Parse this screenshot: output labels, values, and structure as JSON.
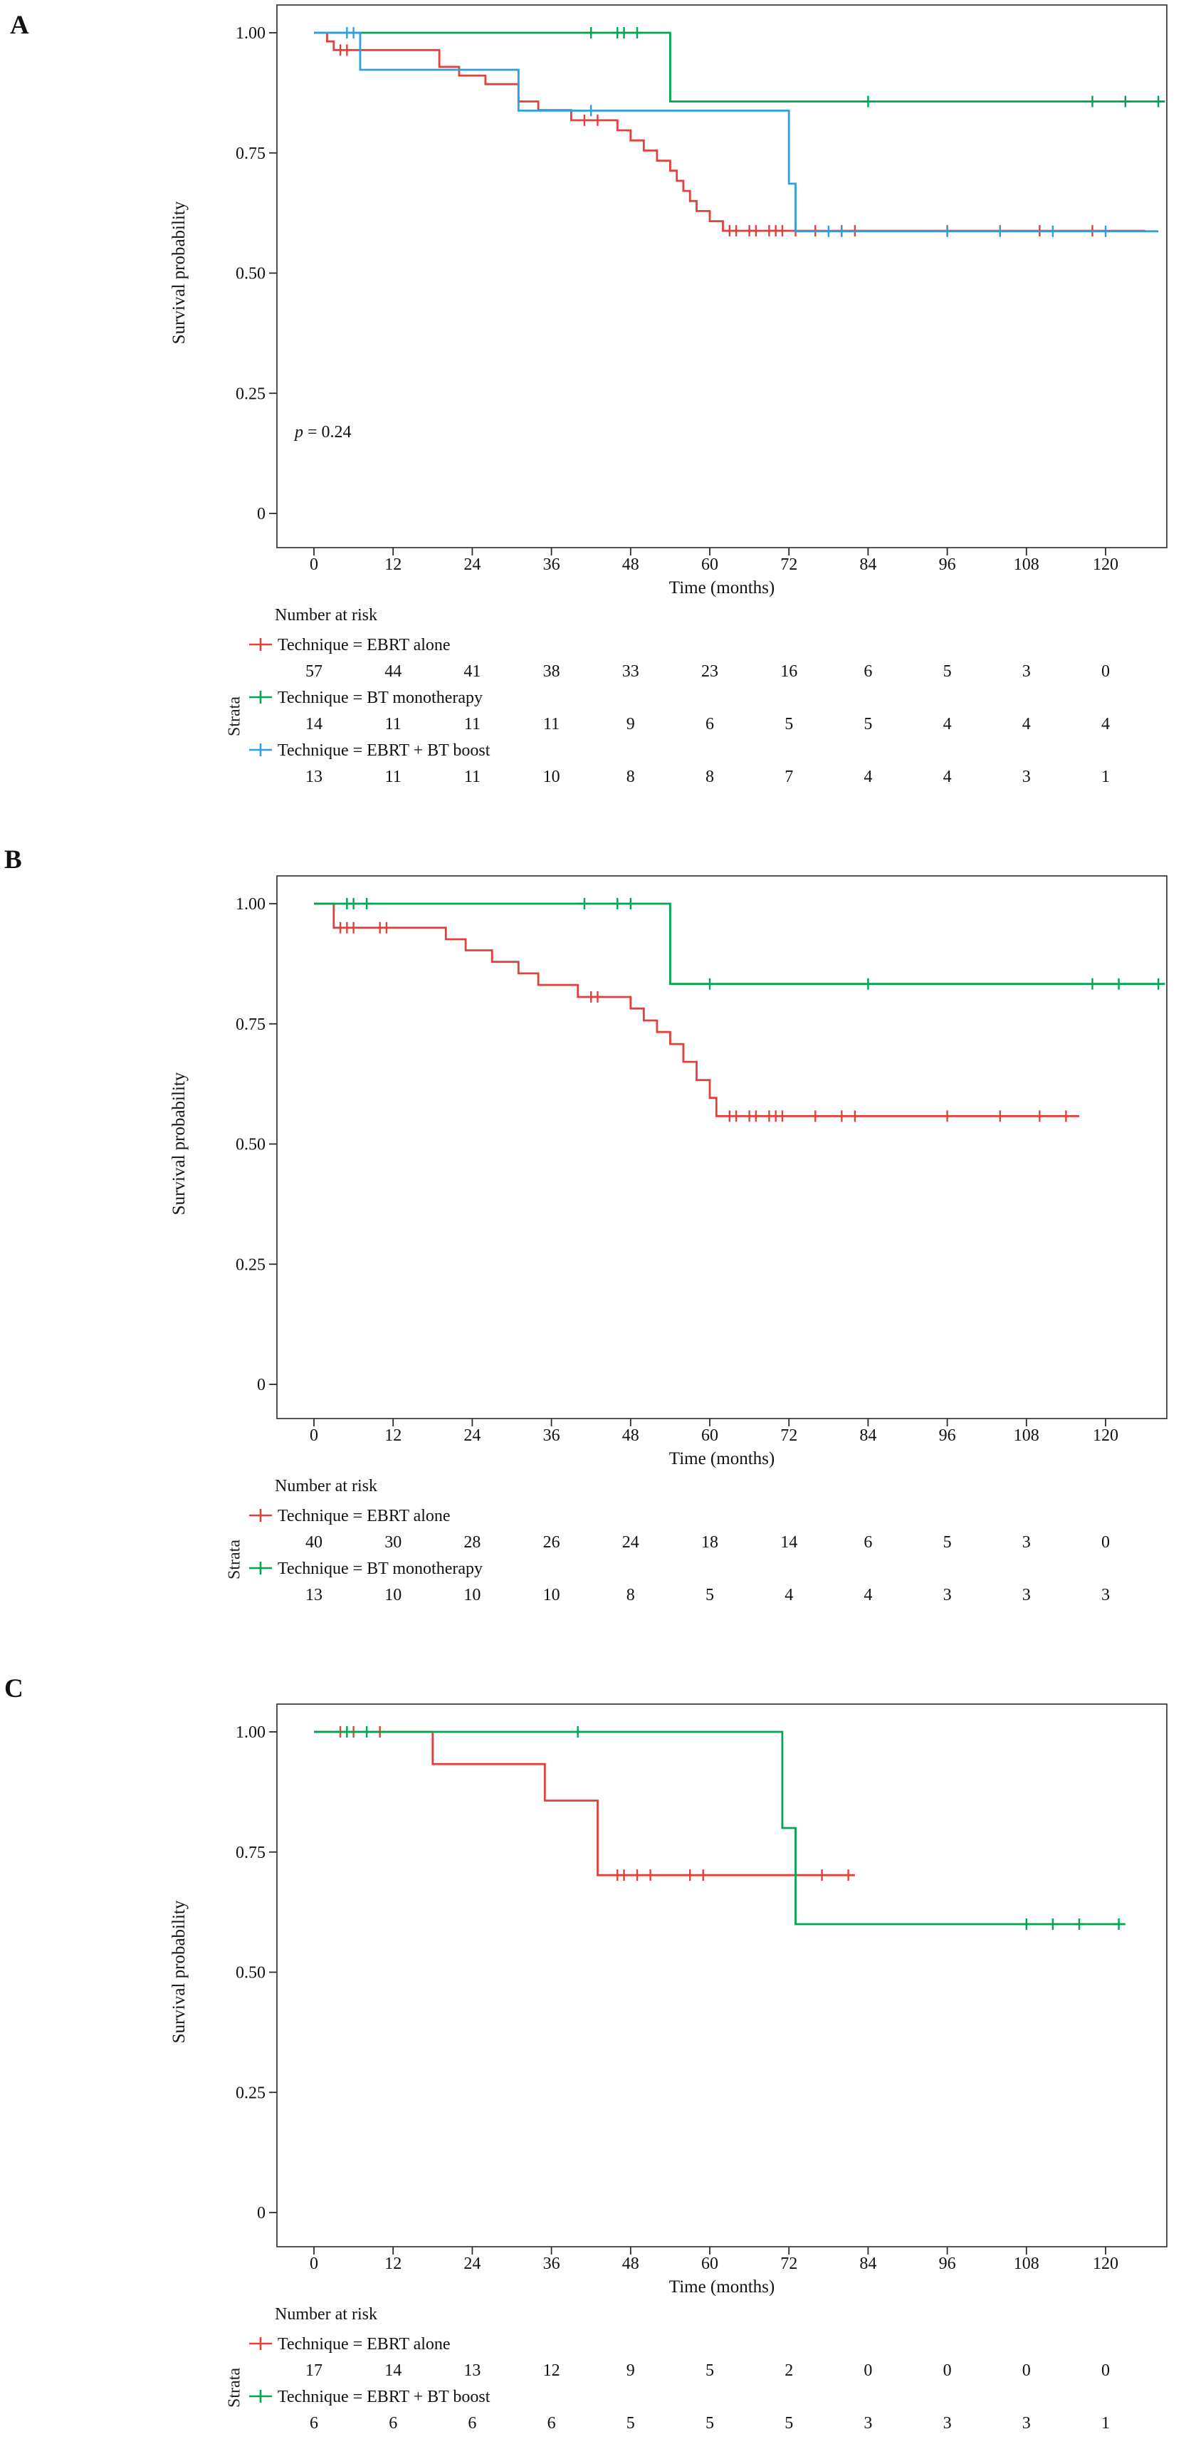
{
  "figure": {
    "y_axis_label": "Survival probability",
    "x_axis_label": "Time (months)",
    "risk_table_title": "Number at risk",
    "strata_label": "Strata",
    "x_ticks": [
      0,
      12,
      24,
      36,
      48,
      60,
      72,
      84,
      96,
      108,
      120
    ],
    "y_ticks": [
      {
        "label": "1.00",
        "value": 1.0
      },
      {
        "label": "0.75",
        "value": 0.75
      },
      {
        "label": "0.50",
        "value": 0.5
      },
      {
        "label": "0.25",
        "value": 0.25
      },
      {
        "label": "0",
        "value": 0.0
      }
    ]
  },
  "colors": {
    "red": "#E2403A",
    "green": "#00A651",
    "blue": "#2E9FDF",
    "axis": "#2B2B2B",
    "text": "#111111"
  },
  "chart_data": [
    {
      "panel_label": "A",
      "type": "line",
      "subtype": "kaplan-meier-step",
      "xlabel": "Time (months)",
      "ylabel": "Survival probability",
      "xlim": [
        0,
        129
      ],
      "ylim": [
        0,
        1
      ],
      "p_value": {
        "italic": "p",
        "rest": " = 0.24"
      },
      "series": [
        {
          "name": "EBRT alone",
          "legend_label": "Technique = EBRT alone",
          "color": "red",
          "steps": [
            [
              0,
              1
            ],
            [
              2,
              0.982
            ],
            [
              3,
              0.964
            ],
            [
              19,
              0.929
            ],
            [
              22,
              0.911
            ],
            [
              26,
              0.893
            ],
            [
              31,
              0.857
            ],
            [
              34,
              0.839
            ],
            [
              39,
              0.818
            ],
            [
              46,
              0.797
            ],
            [
              48,
              0.776
            ],
            [
              50,
              0.755
            ],
            [
              52,
              0.734
            ],
            [
              54,
              0.713
            ],
            [
              55,
              0.692
            ],
            [
              56,
              0.671
            ],
            [
              57,
              0.65
            ],
            [
              58,
              0.629
            ],
            [
              60,
              0.608
            ],
            [
              62,
              0.588
            ]
          ],
          "end_time": 126,
          "censors": [
            [
              4,
              0.964
            ],
            [
              5,
              0.964
            ],
            [
              41,
              0.818
            ],
            [
              43,
              0.818
            ],
            [
              63,
              0.588
            ],
            [
              64,
              0.588
            ],
            [
              66,
              0.588
            ],
            [
              67,
              0.588
            ],
            [
              69,
              0.588
            ],
            [
              70,
              0.588
            ],
            [
              71,
              0.588
            ],
            [
              73,
              0.588
            ],
            [
              76,
              0.588
            ],
            [
              80,
              0.588
            ],
            [
              82,
              0.588
            ],
            [
              96,
              0.588
            ],
            [
              104,
              0.588
            ],
            [
              110,
              0.588
            ],
            [
              118,
              0.588
            ]
          ],
          "at_risk": [
            57,
            44,
            41,
            38,
            33,
            23,
            16,
            6,
            5,
            3,
            0
          ]
        },
        {
          "name": "BT monotherapy",
          "legend_label": "Technique = BT monotherapy",
          "color": "green",
          "steps": [
            [
              0,
              1
            ],
            [
              54,
              0.857
            ]
          ],
          "end_time": 129,
          "censors": [
            [
              42,
              1
            ],
            [
              46,
              1
            ],
            [
              47,
              1
            ],
            [
              49,
              1
            ],
            [
              84,
              0.857
            ],
            [
              118,
              0.857
            ],
            [
              123,
              0.857
            ],
            [
              128,
              0.857
            ]
          ],
          "at_risk": [
            14,
            11,
            11,
            11,
            9,
            6,
            5,
            5,
            4,
            4,
            4
          ]
        },
        {
          "name": "EBRT + BT boost",
          "legend_label": "Technique = EBRT + BT boost",
          "color": "blue",
          "steps": [
            [
              0,
              1
            ],
            [
              7,
              0.923
            ],
            [
              31,
              0.838
            ],
            [
              72,
              0.686
            ],
            [
              73,
              0.587
            ]
          ],
          "end_time": 128,
          "censors": [
            [
              5,
              1
            ],
            [
              6,
              1
            ],
            [
              42,
              0.838
            ],
            [
              78,
              0.587
            ],
            [
              80,
              0.587
            ],
            [
              96,
              0.587
            ],
            [
              104,
              0.587
            ],
            [
              112,
              0.587
            ],
            [
              120,
              0.587
            ]
          ],
          "at_risk": [
            13,
            11,
            11,
            10,
            8,
            8,
            7,
            4,
            4,
            3,
            1
          ]
        }
      ]
    },
    {
      "panel_label": "B",
      "type": "line",
      "subtype": "kaplan-meier-step",
      "xlabel": "Time (months)",
      "ylabel": "Survival probability",
      "xlim": [
        0,
        129
      ],
      "ylim": [
        0,
        1
      ],
      "series": [
        {
          "name": "EBRT alone",
          "legend_label": "Technique = EBRT alone",
          "color": "red",
          "steps": [
            [
              0,
              1
            ],
            [
              3,
              0.95
            ],
            [
              20,
              0.926
            ],
            [
              23,
              0.903
            ],
            [
              27,
              0.879
            ],
            [
              31,
              0.855
            ],
            [
              34,
              0.831
            ],
            [
              40,
              0.806
            ],
            [
              48,
              0.782
            ],
            [
              50,
              0.757
            ],
            [
              52,
              0.733
            ],
            [
              54,
              0.708
            ],
            [
              56,
              0.671
            ],
            [
              58,
              0.633
            ],
            [
              60,
              0.596
            ],
            [
              61,
              0.558
            ]
          ],
          "end_time": 116,
          "censors": [
            [
              4,
              0.95
            ],
            [
              5,
              0.95
            ],
            [
              6,
              0.95
            ],
            [
              10,
              0.95
            ],
            [
              11,
              0.95
            ],
            [
              42,
              0.806
            ],
            [
              43,
              0.806
            ],
            [
              63,
              0.558
            ],
            [
              64,
              0.558
            ],
            [
              66,
              0.558
            ],
            [
              67,
              0.558
            ],
            [
              69,
              0.558
            ],
            [
              70,
              0.558
            ],
            [
              71,
              0.558
            ],
            [
              76,
              0.558
            ],
            [
              80,
              0.558
            ],
            [
              82,
              0.558
            ],
            [
              96,
              0.558
            ],
            [
              104,
              0.558
            ],
            [
              110,
              0.558
            ],
            [
              114,
              0.558
            ]
          ],
          "at_risk": [
            40,
            30,
            28,
            26,
            24,
            18,
            14,
            6,
            5,
            3,
            0
          ]
        },
        {
          "name": "BT monotherapy",
          "legend_label": "Technique = BT monotherapy",
          "color": "green",
          "steps": [
            [
              0,
              1
            ],
            [
              54,
              0.833
            ]
          ],
          "end_time": 129,
          "censors": [
            [
              5,
              1
            ],
            [
              6,
              1
            ],
            [
              8,
              1
            ],
            [
              41,
              1
            ],
            [
              46,
              1
            ],
            [
              48,
              1
            ],
            [
              60,
              0.833
            ],
            [
              84,
              0.833
            ],
            [
              118,
              0.833
            ],
            [
              122,
              0.833
            ],
            [
              128,
              0.833
            ]
          ],
          "at_risk": [
            13,
            10,
            10,
            10,
            8,
            5,
            4,
            4,
            3,
            3,
            3
          ]
        }
      ]
    },
    {
      "panel_label": "C",
      "type": "line",
      "subtype": "kaplan-meier-step",
      "xlabel": "Time (months)",
      "ylabel": "Survival probability",
      "xlim": [
        0,
        129
      ],
      "ylim": [
        0,
        1
      ],
      "series": [
        {
          "name": "EBRT alone",
          "legend_label": "Technique = EBRT alone",
          "color": "red",
          "steps": [
            [
              0,
              1
            ],
            [
              18,
              0.933
            ],
            [
              35,
              0.857
            ],
            [
              43,
              0.702
            ]
          ],
          "end_time": 82,
          "censors": [
            [
              4,
              1
            ],
            [
              6,
              1
            ],
            [
              10,
              1
            ],
            [
              46,
              0.702
            ],
            [
              47,
              0.702
            ],
            [
              49,
              0.702
            ],
            [
              51,
              0.702
            ],
            [
              57,
              0.702
            ],
            [
              59,
              0.702
            ],
            [
              77,
              0.702
            ],
            [
              81,
              0.702
            ]
          ],
          "at_risk": [
            17,
            14,
            13,
            12,
            9,
            5,
            2,
            0,
            0,
            0,
            0
          ]
        },
        {
          "name": "EBRT + BT boost",
          "legend_label": "Technique = EBRT + BT boost",
          "color": "green",
          "steps": [
            [
              0,
              1
            ],
            [
              71,
              0.8
            ],
            [
              73,
              0.6
            ]
          ],
          "end_time": 123,
          "censors": [
            [
              5,
              1
            ],
            [
              8,
              1
            ],
            [
              40,
              1
            ],
            [
              108,
              0.6
            ],
            [
              112,
              0.6
            ],
            [
              116,
              0.6
            ],
            [
              122,
              0.6
            ]
          ],
          "at_risk": [
            6,
            6,
            6,
            6,
            5,
            5,
            5,
            3,
            3,
            3,
            1
          ]
        }
      ]
    }
  ]
}
